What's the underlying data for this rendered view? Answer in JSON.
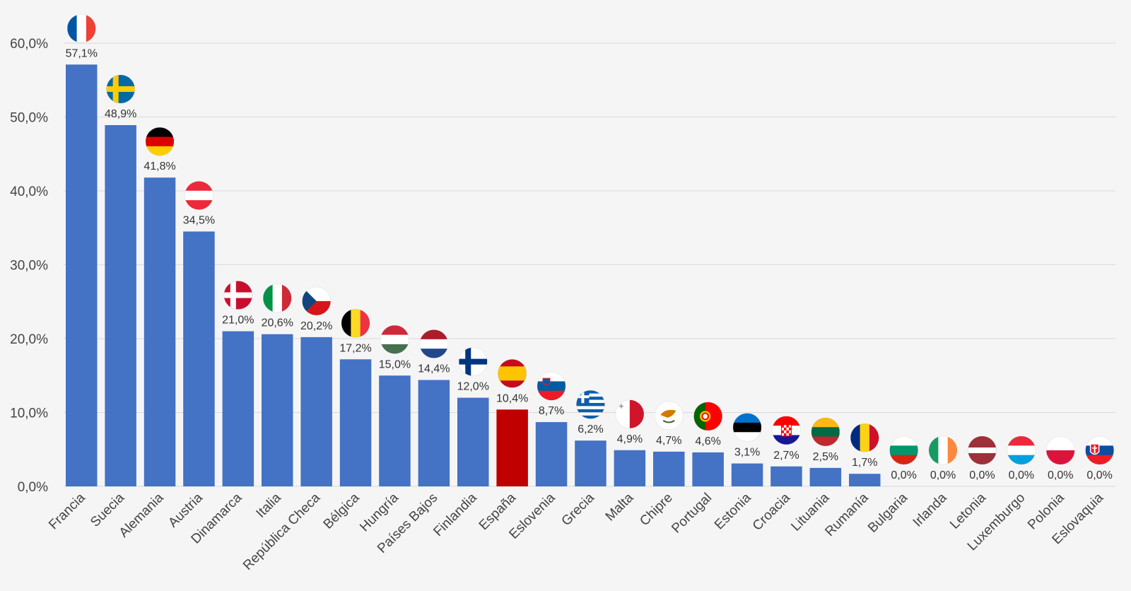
{
  "chart_data": {
    "type": "bar",
    "categories": [
      "Francia",
      "Suecia",
      "Alemania",
      "Austria",
      "Dinamarca",
      "Italia",
      "República Checa",
      "Bélgica",
      "Hungría",
      "Países Bajos",
      "Finlandia",
      "España",
      "Eslovenia",
      "Grecia",
      "Malta",
      "Chipre",
      "Portugal",
      "Estonia",
      "Croacia",
      "Lituania",
      "Rumanía",
      "Bulgaria",
      "Irlanda",
      "Letonia",
      "Luxemburgo",
      "Polonia",
      "Eslovaquia"
    ],
    "values": [
      57.1,
      48.9,
      41.8,
      34.5,
      21.0,
      20.6,
      20.2,
      17.2,
      15.0,
      14.4,
      12.0,
      10.4,
      8.7,
      6.2,
      4.9,
      4.7,
      4.6,
      3.1,
      2.7,
      2.5,
      1.7,
      0.0,
      0.0,
      0.0,
      0.0,
      0.0,
      0.0
    ],
    "value_labels": [
      "57,1%",
      "48,9%",
      "41,8%",
      "34,5%",
      "21,0%",
      "20,6%",
      "20,2%",
      "17,2%",
      "15,0%",
      "14,4%",
      "12,0%",
      "10,4%",
      "8,7%",
      "6,2%",
      "4,9%",
      "4,7%",
      "4,6%",
      "3,1%",
      "2,7%",
      "2,5%",
      "1,7%",
      "0,0%",
      "0,0%",
      "0,0%",
      "0,0%",
      "0,0%",
      "0,0%"
    ],
    "y_ticks": [
      0,
      10,
      20,
      30,
      40,
      50,
      60
    ],
    "y_tick_labels": [
      "0,0%",
      "10,0%",
      "20,0%",
      "30,0%",
      "40,0%",
      "50,0%",
      "60,0%"
    ],
    "ylim": [
      0,
      60
    ],
    "grid": true,
    "title": "",
    "xlabel": "",
    "ylabel": "",
    "colors": {
      "default": "#4472c4",
      "highlight": "#c00000",
      "grid": "#d9d9d9"
    },
    "highlight": "España",
    "flag_icons": [
      "france-flag-icon",
      "sweden-flag-icon",
      "germany-flag-icon",
      "austria-flag-icon",
      "denmark-flag-icon",
      "italy-flag-icon",
      "czech-republic-flag-icon",
      "belgium-flag-icon",
      "hungary-flag-icon",
      "netherlands-flag-icon",
      "finland-flag-icon",
      "spain-flag-icon",
      "slovenia-flag-icon",
      "greece-flag-icon",
      "malta-flag-icon",
      "cyprus-flag-icon",
      "portugal-flag-icon",
      "estonia-flag-icon",
      "croatia-flag-icon",
      "lithuania-flag-icon",
      "romania-flag-icon",
      "bulgaria-flag-icon",
      "ireland-flag-icon",
      "latvia-flag-icon",
      "luxembourg-flag-icon",
      "poland-flag-icon",
      "slovakia-flag-icon"
    ]
  }
}
